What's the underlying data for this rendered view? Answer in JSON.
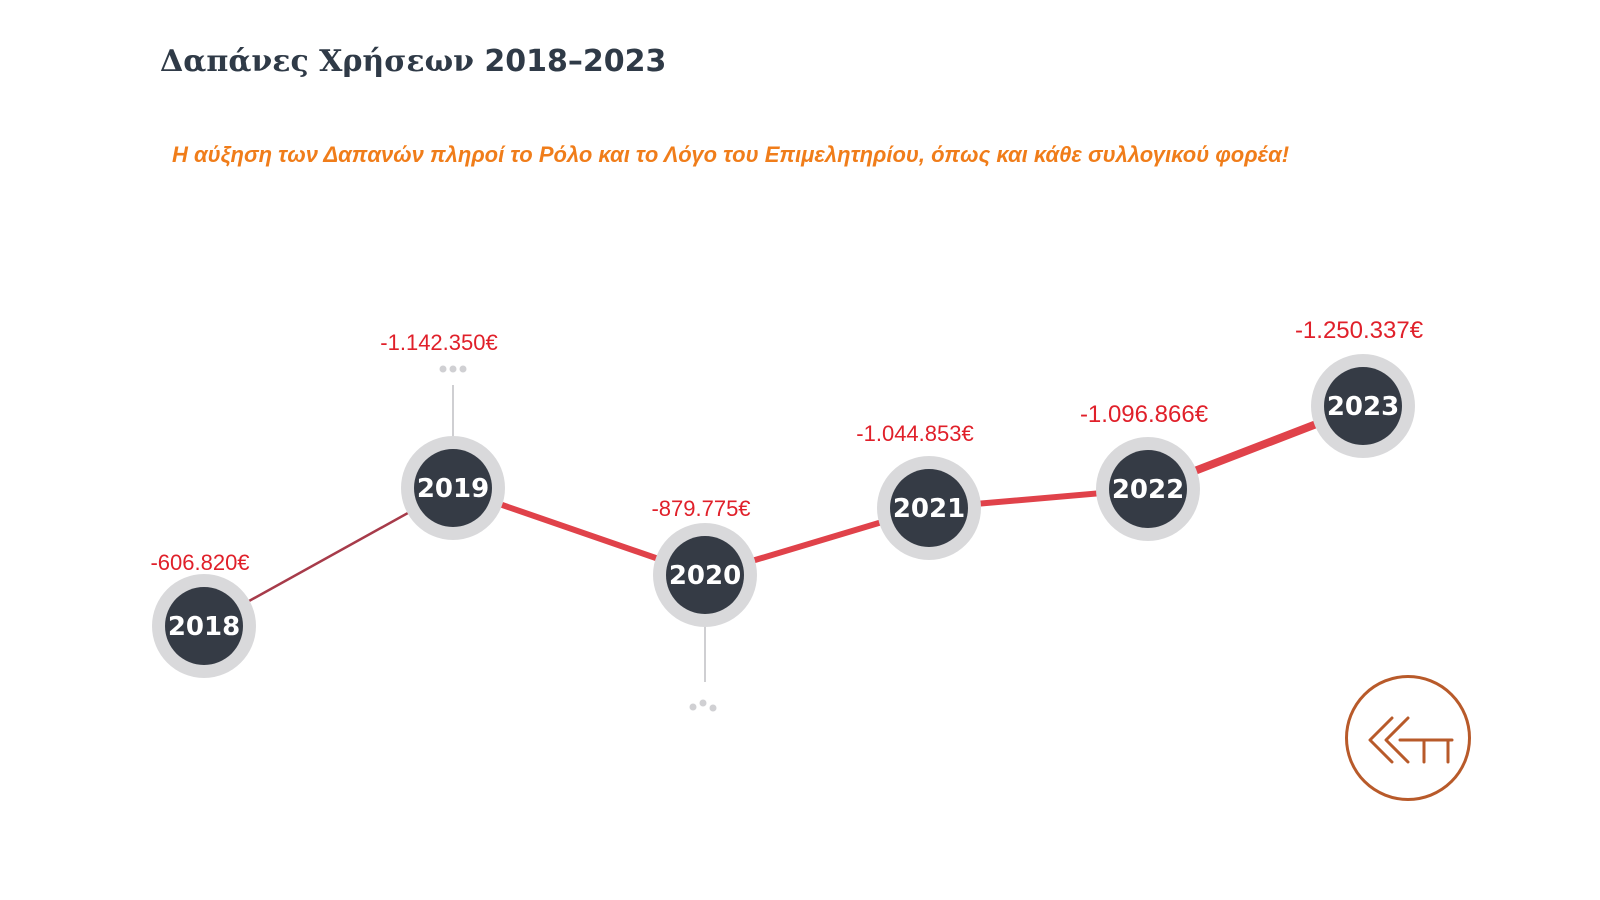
{
  "page": {
    "title_text": "Δαπάνες Χρήσεων",
    "title_years": "2018–2023",
    "subtitle": "Η αύξηση των Δαπανών πληροί το Ρόλο και το Λόγο του Επιμελητηρίου, όπως και κάθε συλλογικού φορέα!"
  },
  "colors": {
    "line": "#e0424a",
    "first_segment": "#a73b4a",
    "node_fill": "#353b45",
    "node_ring": "#d9d9db",
    "value_label": "#e0202a",
    "logo": "#b85a2a"
  },
  "chart_data": {
    "type": "line",
    "categories": [
      "2018",
      "2019",
      "2020",
      "2021",
      "2022",
      "2023"
    ],
    "values": [
      -606820,
      -1142350,
      -879775,
      -1044853,
      -1096866,
      -1250337
    ],
    "value_labels": [
      "-606.820€",
      "-1.142.350€",
      "-879.775€",
      "-1.044.853€",
      "-1.096.866€",
      "-1.250.337€"
    ],
    "title": "",
    "xlabel": "",
    "ylabel": "",
    "grid": false,
    "legend": "none"
  },
  "logo": {
    "icon": "chamber-logo-icon"
  }
}
